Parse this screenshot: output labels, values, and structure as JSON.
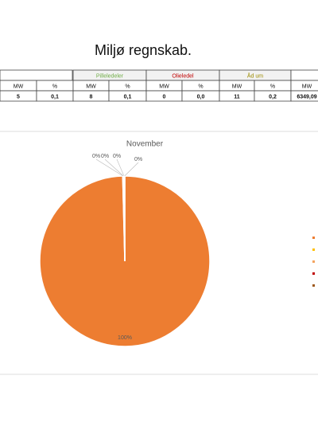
{
  "title": "Miljø regnskab.",
  "table": {
    "groups": [
      "Pilleledeler",
      "Olieledel",
      "Åd um"
    ],
    "group_colors": [
      "#70ad47",
      "#c00000",
      "#9c8b00"
    ],
    "columns": [
      "MW",
      "%",
      "MW",
      "%",
      "MW",
      "%",
      "MW",
      "%",
      "MW"
    ],
    "rows": [
      [
        "5",
        "0,1",
        "8",
        "0,1",
        "0",
        "0,0",
        "11",
        "0,2",
        "6349,09"
      ]
    ]
  },
  "chart_data": {
    "type": "pie",
    "title": "November",
    "values": [
      99.6,
      0.1,
      0.1,
      0.1,
      0.1
    ],
    "value_labels": [
      "100%",
      "0%",
      "0%",
      "0%",
      "0%"
    ],
    "colors": [
      "#ed7d31",
      "#ffc000",
      "#f4a460",
      "#c00000",
      "#9e5a1e"
    ]
  }
}
